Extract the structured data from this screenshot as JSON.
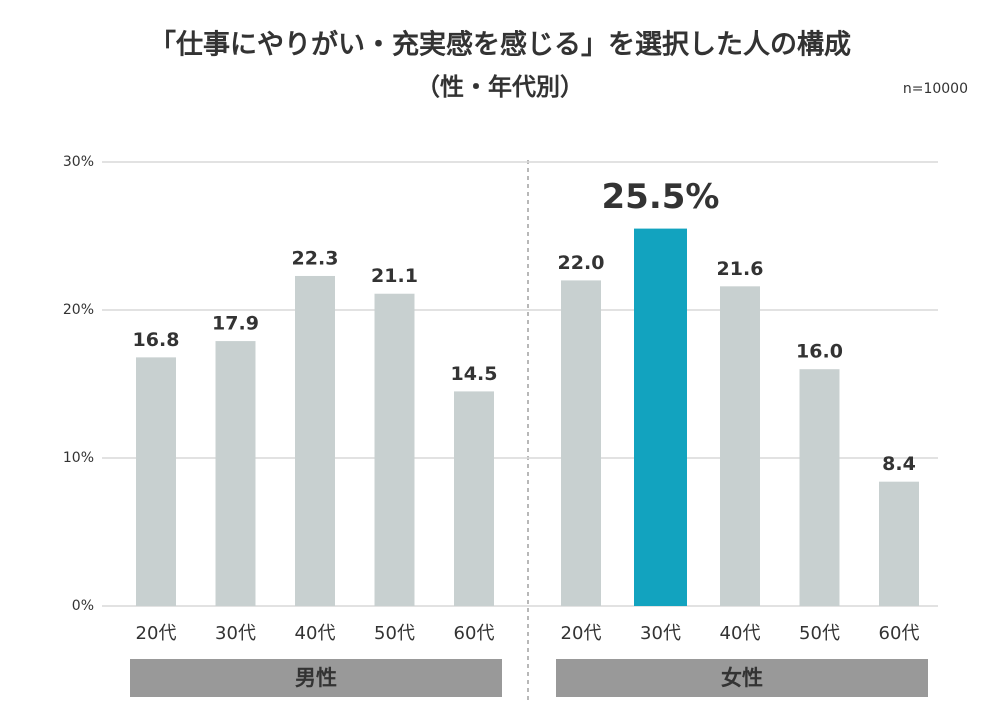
{
  "chart_data": {
    "type": "bar",
    "title": "「仕事にやりがい・充実感を感じる」を選択した人の構成",
    "subtitle": "（性・年代別）",
    "note": "n=10000",
    "ylim": [
      0,
      30
    ],
    "yticks": [
      {
        "value": 0,
        "label": "0%"
      },
      {
        "value": 10,
        "label": "10%"
      },
      {
        "value": 20,
        "label": "20%"
      },
      {
        "value": 30,
        "label": "30%"
      }
    ],
    "grid": true,
    "highlight_color": "#12a3bf",
    "highlight_label_color": "#3b7a8c",
    "groups": [
      {
        "name": "男性",
        "categories": [
          "20代",
          "30代",
          "40代",
          "50代",
          "60代"
        ],
        "values": [
          16.8,
          17.9,
          22.3,
          21.1,
          14.5
        ],
        "value_labels": [
          "16.8",
          "17.9",
          "22.3",
          "21.1",
          "14.5"
        ],
        "colors": [
          "#c8d0d0",
          "#c8d0d0",
          "#c8d0d0",
          "#c8d0d0",
          "#c8d0d0"
        ]
      },
      {
        "name": "女性",
        "categories": [
          "20代",
          "30代",
          "40代",
          "50代",
          "60代"
        ],
        "values": [
          22.0,
          25.5,
          21.6,
          16.0,
          8.4
        ],
        "value_labels": [
          "22.0",
          "25.5%",
          "21.6",
          "16.0",
          "8.4"
        ],
        "colors": [
          "#c8d0d0",
          "#12a3bf",
          "#c8d0d0",
          "#c8d0d0",
          "#c8d0d0"
        ]
      }
    ]
  }
}
